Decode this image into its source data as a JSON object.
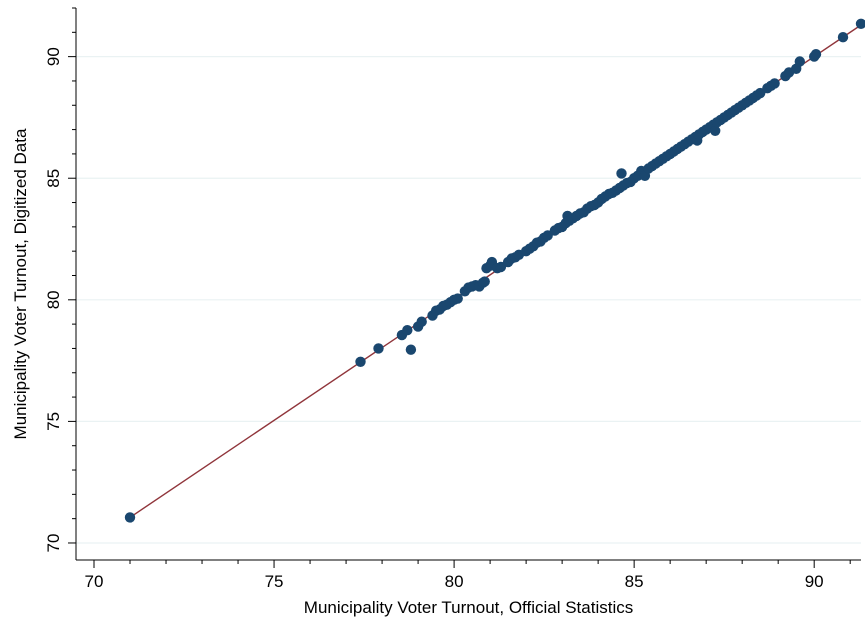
{
  "chart_data": {
    "type": "scatter",
    "xlabel": "Municipality Voter Turnout, Official Statistics",
    "ylabel": "Municipality Voter Turnout, Digitized Data",
    "xlim": [
      69.5,
      91.3
    ],
    "ylim": [
      69.3,
      92.0
    ],
    "x_ticks": [
      70,
      75,
      80,
      85,
      90
    ],
    "y_ticks": [
      70,
      75,
      80,
      85,
      90
    ],
    "minor_x_step": 1,
    "minor_y_step": 1,
    "grid": "horizontal",
    "legend": "none",
    "colors": {
      "points": "#1a476f",
      "fit_line": "#90353b",
      "grid": "#eaf2f3",
      "axis": "#000000"
    },
    "series": [
      {
        "kind": "points",
        "x": [
          71.0,
          77.4,
          77.9,
          78.55,
          78.7,
          78.8,
          79.0,
          79.1,
          79.4,
          79.5,
          79.6,
          79.7,
          79.8,
          79.9,
          80.0,
          80.1,
          80.3,
          80.4,
          80.5,
          80.6,
          80.7,
          80.8,
          80.85,
          80.9,
          81.0,
          81.05,
          81.2,
          81.3,
          81.5,
          81.6,
          81.7,
          81.8,
          82.0,
          82.1,
          82.2,
          82.3,
          82.4,
          82.5,
          82.6,
          82.8,
          82.9,
          83.0,
          83.1,
          83.15,
          83.2,
          83.3,
          83.4,
          83.5,
          83.6,
          83.7,
          83.8,
          83.9,
          84.0,
          84.1,
          84.2,
          84.3,
          84.4,
          84.5,
          84.6,
          84.65,
          84.7,
          84.8,
          84.9,
          85.0,
          85.1,
          85.2,
          85.3,
          85.4,
          85.5,
          85.6,
          85.7,
          85.8,
          85.9,
          86.0,
          86.1,
          86.2,
          86.3,
          86.4,
          86.5,
          86.6,
          86.7,
          86.75,
          86.8,
          86.9,
          87.0,
          87.1,
          87.2,
          87.25,
          87.3,
          87.4,
          87.5,
          87.6,
          87.7,
          87.8,
          87.9,
          88.0,
          88.1,
          88.2,
          88.3,
          88.4,
          88.5,
          88.7,
          88.8,
          88.9,
          89.2,
          89.3,
          89.5,
          89.6,
          90.0,
          90.05,
          90.8,
          91.3
        ],
        "y": [
          71.05,
          77.45,
          78.0,
          78.55,
          78.75,
          77.95,
          78.9,
          79.1,
          79.35,
          79.55,
          79.6,
          79.75,
          79.8,
          79.9,
          80.0,
          80.05,
          80.35,
          80.5,
          80.55,
          80.6,
          80.55,
          80.7,
          80.75,
          81.3,
          81.4,
          81.55,
          81.3,
          81.35,
          81.55,
          81.7,
          81.75,
          81.85,
          82.0,
          82.1,
          82.2,
          82.35,
          82.4,
          82.55,
          82.65,
          82.85,
          82.95,
          83.0,
          83.15,
          83.45,
          83.25,
          83.35,
          83.45,
          83.55,
          83.6,
          83.75,
          83.85,
          83.9,
          84.0,
          84.15,
          84.25,
          84.35,
          84.4,
          84.5,
          84.6,
          85.2,
          84.7,
          84.8,
          84.85,
          85.0,
          85.1,
          85.3,
          85.1,
          85.4,
          85.5,
          85.6,
          85.7,
          85.8,
          85.9,
          86.0,
          86.1,
          86.2,
          86.3,
          86.4,
          86.5,
          86.6,
          86.7,
          86.55,
          86.8,
          86.9,
          87.0,
          87.1,
          87.2,
          86.95,
          87.3,
          87.4,
          87.5,
          87.6,
          87.7,
          87.8,
          87.9,
          88.0,
          88.1,
          88.2,
          88.3,
          88.4,
          88.5,
          88.7,
          88.8,
          88.9,
          89.2,
          89.35,
          89.5,
          89.8,
          90.0,
          90.1,
          90.8,
          91.35
        ]
      },
      {
        "kind": "fit_line",
        "x": [
          71.0,
          91.3
        ],
        "y": [
          71.05,
          91.3
        ]
      }
    ]
  }
}
